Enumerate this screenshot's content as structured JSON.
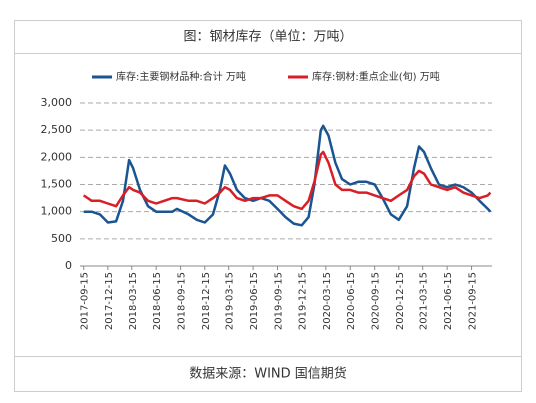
{
  "chart_data": {
    "type": "line",
    "title": "图：钢材库存（单位：万吨）",
    "source": "数据来源：WIND 国信期货",
    "x": [
      "2017-09-15",
      "2017-10-15",
      "2017-11-15",
      "2017-12-15",
      "2018-01-15",
      "2018-02-10",
      "2018-03-05",
      "2018-03-20",
      "2018-04-15",
      "2018-05-15",
      "2018-06-15",
      "2018-07-15",
      "2018-08-15",
      "2018-09-01",
      "2018-10-15",
      "2018-11-15",
      "2018-12-15",
      "2019-01-15",
      "2019-02-10",
      "2019-03-01",
      "2019-03-20",
      "2019-04-15",
      "2019-05-15",
      "2019-06-15",
      "2019-07-15",
      "2019-08-15",
      "2019-09-15",
      "2019-10-15",
      "2019-11-15",
      "2019-12-15",
      "2020-01-10",
      "2020-02-01",
      "2020-02-25",
      "2020-03-05",
      "2020-03-25",
      "2020-04-20",
      "2020-05-15",
      "2020-06-15",
      "2020-07-15",
      "2020-08-15",
      "2020-09-15",
      "2020-10-15",
      "2020-11-15",
      "2020-12-15",
      "2021-01-15",
      "2021-02-10",
      "2021-03-01",
      "2021-03-20",
      "2021-04-15",
      "2021-05-15",
      "2021-06-15",
      "2021-07-15",
      "2021-08-15",
      "2021-09-15",
      "2021-10-15",
      "2021-11-15",
      "2021-11-25"
    ],
    "series": [
      {
        "name": "库存:主要钢材品种:合计 万吨",
        "color": "#1a5591",
        "values": [
          1000,
          1000,
          950,
          800,
          820,
          1200,
          1950,
          1800,
          1400,
          1100,
          1000,
          1000,
          1000,
          1050,
          950,
          850,
          800,
          950,
          1400,
          1850,
          1700,
          1400,
          1250,
          1200,
          1250,
          1200,
          1050,
          900,
          780,
          750,
          900,
          1500,
          2500,
          2580,
          2400,
          1900,
          1600,
          1500,
          1550,
          1550,
          1500,
          1250,
          950,
          850,
          1100,
          1800,
          2200,
          2100,
          1800,
          1500,
          1450,
          1500,
          1450,
          1350,
          1200,
          1050,
          1000
        ]
      },
      {
        "name": "库存:钢材:重点企业(旬) 万吨",
        "color": "#d91e26",
        "values": [
          1300,
          1200,
          1200,
          1150,
          1100,
          1300,
          1450,
          1400,
          1350,
          1200,
          1150,
          1200,
          1250,
          1250,
          1200,
          1200,
          1150,
          1250,
          1350,
          1450,
          1400,
          1250,
          1200,
          1250,
          1250,
          1300,
          1300,
          1200,
          1100,
          1050,
          1200,
          1550,
          2050,
          2100,
          1900,
          1500,
          1400,
          1400,
          1350,
          1350,
          1300,
          1250,
          1200,
          1300,
          1400,
          1650,
          1750,
          1700,
          1500,
          1450,
          1400,
          1450,
          1350,
          1300,
          1250,
          1300,
          1350
        ]
      }
    ],
    "xlim": [
      "2017-09-01",
      "2021-12-01"
    ],
    "xticks": [
      "2017-09-15",
      "2017-12-15",
      "2018-03-15",
      "2018-06-15",
      "2018-09-15",
      "2018-12-15",
      "2019-03-15",
      "2019-06-15",
      "2019-09-15",
      "2019-12-15",
      "2020-03-15",
      "2020-06-15",
      "2020-09-15",
      "2020-12-15",
      "2021-03-15",
      "2021-06-15",
      "2021-09-15"
    ],
    "ylim": [
      0,
      3000
    ],
    "yticks": [
      0,
      500,
      {
        "value": 1000,
        "label": "1,000"
      },
      {
        "value": 1500,
        "label": "1,500"
      },
      {
        "value": 2000,
        "label": "2,000"
      },
      {
        "value": 2500,
        "label": "2,500"
      },
      {
        "value": 3000,
        "label": "3,000"
      }
    ],
    "grid": true
  }
}
